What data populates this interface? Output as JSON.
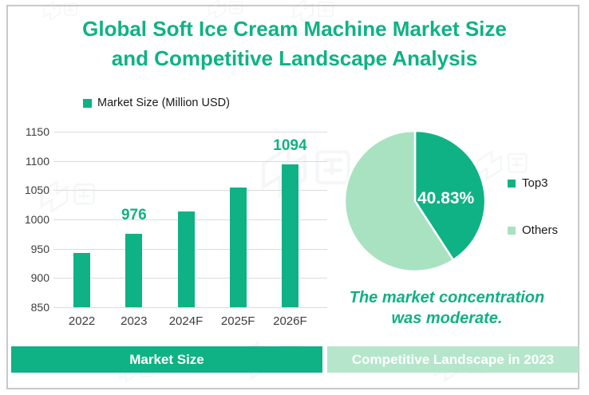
{
  "header": {
    "title_line1": "Global Soft Ice Cream Machine Market Size",
    "title_line2": "and Competitive Landscape Analysis"
  },
  "bar_section": {
    "legend_label": "Market Size (Million USD)",
    "footer_tab": "Market Size"
  },
  "pie_section": {
    "callout": "40.83%",
    "annotation_line1": "The market concentration",
    "annotation_line2": "was moderate.",
    "footer_tab": "Competitive Landscape in 2023"
  },
  "colors": {
    "accent_dark": "#0fb284",
    "accent_light": "#a9e2c0",
    "footer_light": "#b5e6cb",
    "grid": "#dcdcdc",
    "text": "#3d3d3d",
    "frame": "#c9c9c9"
  },
  "chart_data": [
    {
      "type": "bar",
      "title": "Market Size (Million USD)",
      "categories": [
        "2022",
        "2023",
        "2024F",
        "2025F",
        "2026F"
      ],
      "values": [
        943,
        976,
        1013,
        1055,
        1094
      ],
      "label_indices": [
        1,
        4
      ],
      "data_labels": {
        "2023": "976",
        "2026F": "1094"
      },
      "ylabel": "",
      "xlabel": "",
      "ylim": [
        850,
        1150
      ],
      "yticks": [
        850,
        900,
        950,
        1000,
        1050,
        1100,
        1150
      ],
      "grid": true,
      "legend_position": "top-left",
      "bar_color": "#0fb284"
    },
    {
      "type": "pie",
      "labels": [
        "Top3",
        "Others"
      ],
      "values": [
        40.83,
        59.17
      ],
      "colors": [
        "#0fb284",
        "#a9e2c0"
      ],
      "data_label": "40.83%",
      "start_angle": "12 o'clock",
      "direction": "clockwise",
      "legend_position": "right"
    }
  ]
}
